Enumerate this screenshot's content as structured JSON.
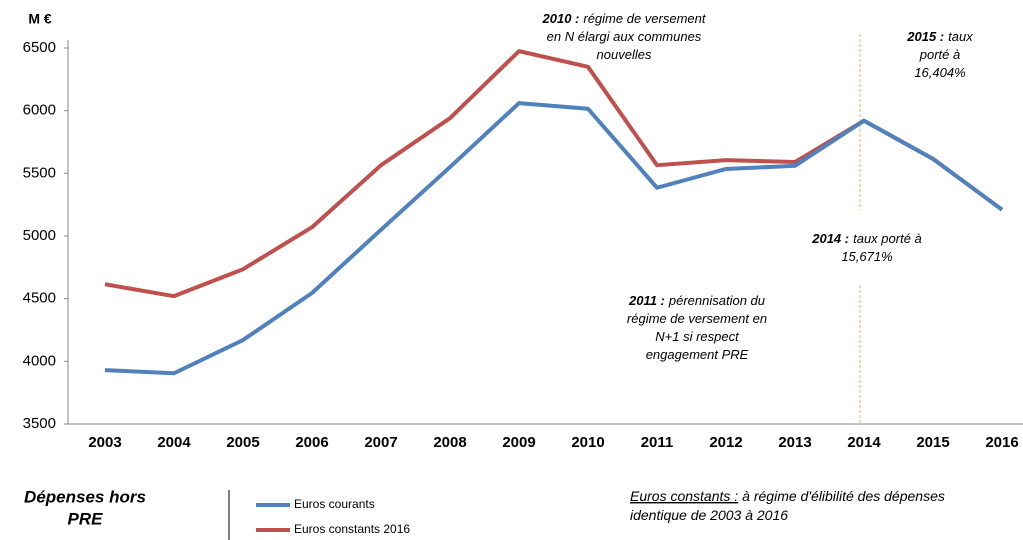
{
  "chart_data": {
    "type": "line",
    "y_label": "M €",
    "categories": [
      "2003",
      "2004",
      "2005",
      "2006",
      "2007",
      "2008",
      "2009",
      "2010",
      "2011",
      "2012",
      "2013",
      "2014",
      "2015",
      "2016"
    ],
    "series": [
      {
        "name": "Euros courants",
        "color": "#4f81bd",
        "values": [
          3930,
          3905,
          4170,
          4545,
          5050,
          5550,
          6060,
          6015,
          5385,
          5535,
          5560,
          5920,
          5615,
          5210
        ]
      },
      {
        "name": "Euros constants 2016",
        "color": "#c0504d",
        "values": [
          4615,
          4520,
          4735,
          5070,
          5565,
          5940,
          6475,
          6350,
          5565,
          5605,
          5590,
          5920,
          5615,
          5210
        ]
      }
    ],
    "ylim": [
      3500,
      6500
    ],
    "yticks": [
      3500,
      4000,
      4500,
      5000,
      5500,
      6000,
      6500
    ],
    "grid": false,
    "legend": "bottom",
    "annotations": [
      {
        "bold": "2010 :",
        "lines": [
          "régime de versement",
          "en N élargi aux communes",
          "nouvelles"
        ]
      },
      {
        "bold": "2011 :",
        "lines": [
          "pérennisation du",
          "régime de versement en",
          "N+1 si respect",
          "engagement PRE"
        ]
      },
      {
        "bold": "2014 :",
        "lines": [
          "taux porté à",
          "15,671%"
        ]
      },
      {
        "bold": "2015 :",
        "lines": [
          "taux",
          "porté à",
          "16,404%"
        ]
      }
    ],
    "side_label": [
      "Dépenses hors",
      "PRE"
    ],
    "note": {
      "label": "Euros constants :",
      "lines": [
        "à régime d'élibilité des dépenses",
        "identique de 2003 à 2016"
      ]
    }
  }
}
